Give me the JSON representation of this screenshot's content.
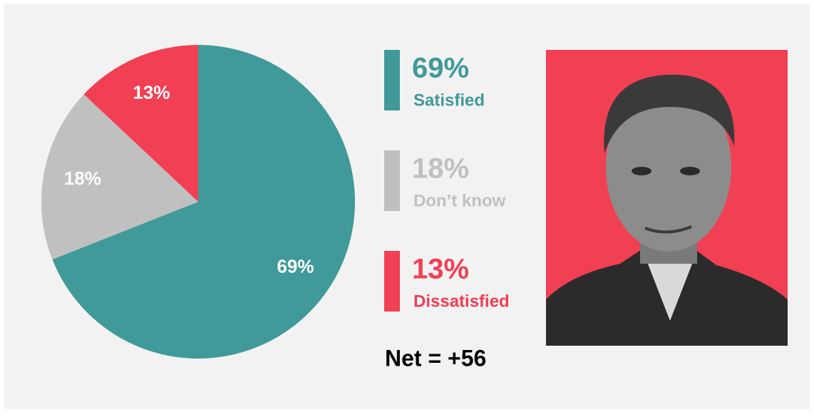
{
  "chart_data": {
    "type": "pie",
    "categories": [
      "Satisfied",
      "Don’t know",
      "Dissatisfied"
    ],
    "values": [
      69,
      18,
      13
    ],
    "value_labels": [
      "69%",
      "18%",
      "13%"
    ],
    "colors": [
      "#409a99",
      "#c0c0c0",
      "#f13f53"
    ],
    "annotation": "Net = +56"
  }
}
